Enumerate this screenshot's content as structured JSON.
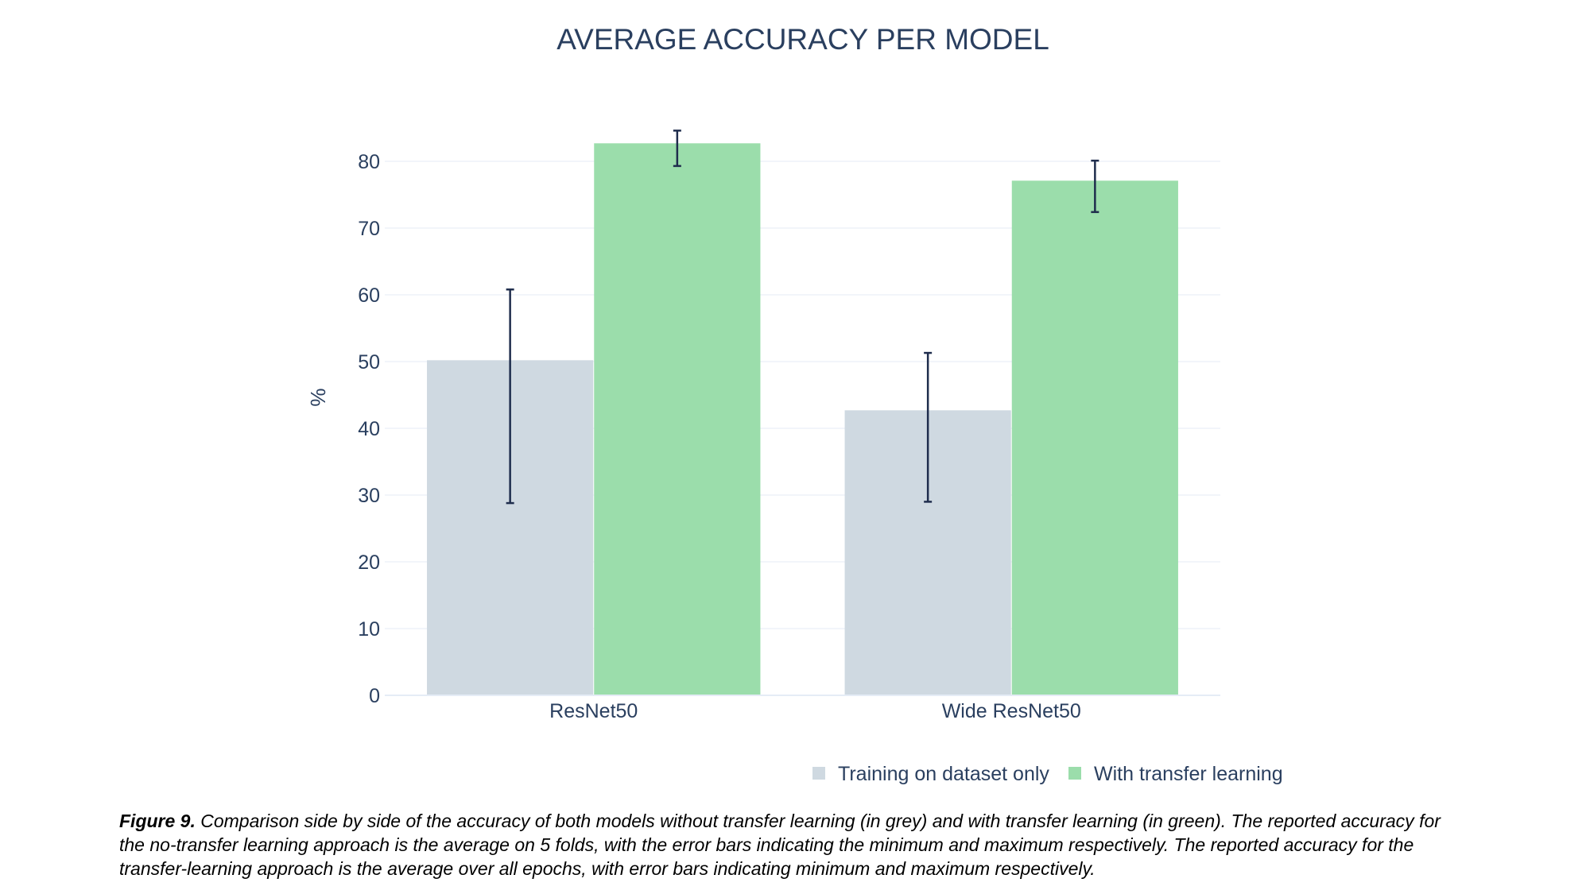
{
  "chart_data": {
    "type": "bar",
    "title": "AVERAGE ACCURACY PER MODEL",
    "xlabel": "",
    "ylabel": "%",
    "categories": [
      "ResNet50",
      "Wide ResNet50"
    ],
    "ylim": [
      0,
      85
    ],
    "yticks": [
      "0",
      "10",
      "20",
      "30",
      "40",
      "50",
      "60",
      "70",
      "80"
    ],
    "grid": true,
    "legend_position": "bottom-right",
    "series": [
      {
        "name": "Training on dataset only",
        "color": "#cfd9e1",
        "values": [
          50.2,
          42.7
        ],
        "error_min": [
          28.8,
          29.0
        ],
        "error_max": [
          60.8,
          51.3
        ]
      },
      {
        "name": "With transfer learning",
        "color": "#9bddab",
        "values": [
          82.7,
          77.1
        ],
        "error_min": [
          79.3,
          72.4
        ],
        "error_max": [
          84.6,
          80.1
        ]
      }
    ],
    "error_bar_color": "#1f2d4d"
  },
  "caption": {
    "label": "Figure 9.",
    "text": "Comparison side by side of the accuracy of both models without transfer learning (in grey) and with transfer learning (in green). The reported accuracy for the no-transfer learning approach is the average on 5 folds, with the error bars indicating the minimum and maximum respectively. The reported accuracy for the transfer-learning approach is the average over all epochs, with error bars indicating minimum and maximum respectively."
  }
}
